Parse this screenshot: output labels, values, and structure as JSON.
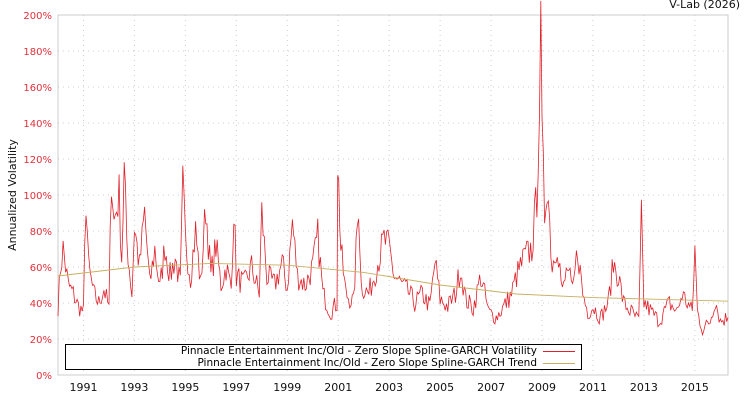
{
  "credit": "V-Lab (2026)",
  "chart_data": {
    "type": "line",
    "title": "",
    "xlabel": "",
    "ylabel": "Annualized Volatility",
    "ylim": [
      0,
      200
    ],
    "xlim": [
      1990.0,
      2016.3
    ],
    "y_ticks": [
      "0%",
      "20%",
      "40%",
      "60%",
      "80%",
      "100%",
      "120%",
      "140%",
      "160%",
      "180%",
      "200%"
    ],
    "x_ticks": [
      "1991",
      "1993",
      "1995",
      "1997",
      "1999",
      "2001",
      "2003",
      "2005",
      "2007",
      "2009",
      "2011",
      "2013",
      "2015"
    ],
    "grid": true,
    "legend_position": "bottom-left",
    "series": [
      {
        "name": "Pinnacle Entertainment Inc/Old - Zero Slope Spline-GARCH Volatility",
        "color": "#e0202a",
        "points": [
          [
            1990.0,
            38
          ],
          [
            1990.1,
            60
          ],
          [
            1990.2,
            70
          ],
          [
            1990.4,
            50
          ],
          [
            1990.6,
            45
          ],
          [
            1990.8,
            38
          ],
          [
            1991.0,
            35
          ],
          [
            1991.1,
            99
          ],
          [
            1991.2,
            60
          ],
          [
            1991.4,
            45
          ],
          [
            1991.6,
            40
          ],
          [
            1991.8,
            48
          ],
          [
            1992.0,
            37
          ],
          [
            1992.1,
            113
          ],
          [
            1992.2,
            85
          ],
          [
            1992.4,
            100
          ],
          [
            1992.5,
            65
          ],
          [
            1992.6,
            113
          ],
          [
            1992.7,
            75
          ],
          [
            1992.9,
            45
          ],
          [
            1993.0,
            83
          ],
          [
            1993.2,
            60
          ],
          [
            1993.4,
            90
          ],
          [
            1993.6,
            50
          ],
          [
            1993.8,
            70
          ],
          [
            1994.0,
            48
          ],
          [
            1994.2,
            72
          ],
          [
            1994.4,
            55
          ],
          [
            1994.6,
            65
          ],
          [
            1994.8,
            50
          ],
          [
            1994.9,
            105
          ],
          [
            1995.0,
            75
          ],
          [
            1995.2,
            55
          ],
          [
            1995.4,
            80
          ],
          [
            1995.6,
            50
          ],
          [
            1995.8,
            94
          ],
          [
            1996.0,
            55
          ],
          [
            1996.2,
            72
          ],
          [
            1996.4,
            50
          ],
          [
            1996.6,
            60
          ],
          [
            1996.8,
            48
          ],
          [
            1996.9,
            94
          ],
          [
            1997.0,
            55
          ],
          [
            1997.3,
            50
          ],
          [
            1997.6,
            60
          ],
          [
            1997.9,
            45
          ],
          [
            1998.0,
            90
          ],
          [
            1998.2,
            55
          ],
          [
            1998.5,
            50
          ],
          [
            1998.8,
            62
          ],
          [
            1999.0,
            48
          ],
          [
            1999.2,
            85
          ],
          [
            1999.4,
            55
          ],
          [
            1999.7,
            50
          ],
          [
            2000.0,
            60
          ],
          [
            2000.2,
            77
          ],
          [
            2000.4,
            45
          ],
          [
            2000.7,
            35
          ],
          [
            2000.95,
            40
          ],
          [
            2000.98,
            121
          ],
          [
            2001.1,
            70
          ],
          [
            2001.3,
            45
          ],
          [
            2001.6,
            40
          ],
          [
            2001.8,
            97
          ],
          [
            2001.9,
            50
          ],
          [
            2002.2,
            45
          ],
          [
            2002.5,
            60
          ],
          [
            2002.8,
            75
          ],
          [
            2003.0,
            70
          ],
          [
            2003.2,
            55
          ],
          [
            2003.5,
            50
          ],
          [
            2003.8,
            45
          ],
          [
            2004.0,
            40
          ],
          [
            2004.3,
            45
          ],
          [
            2004.6,
            38
          ],
          [
            2004.8,
            63
          ],
          [
            2005.0,
            42
          ],
          [
            2005.3,
            38
          ],
          [
            2005.6,
            45
          ],
          [
            2005.8,
            60
          ],
          [
            2006.0,
            42
          ],
          [
            2006.3,
            37
          ],
          [
            2006.6,
            55
          ],
          [
            2006.9,
            35
          ],
          [
            2007.2,
            32
          ],
          [
            2007.5,
            38
          ],
          [
            2007.8,
            45
          ],
          [
            2008.0,
            55
          ],
          [
            2008.3,
            65
          ],
          [
            2008.6,
            70
          ],
          [
            2008.8,
            100
          ],
          [
            2008.9,
            155
          ],
          [
            2008.95,
            185
          ],
          [
            2009.0,
            130
          ],
          [
            2009.1,
            90
          ],
          [
            2009.2,
            110
          ],
          [
            2009.4,
            60
          ],
          [
            2009.6,
            75
          ],
          [
            2009.8,
            45
          ],
          [
            2010.0,
            60
          ],
          [
            2010.2,
            45
          ],
          [
            2010.4,
            70
          ],
          [
            2010.6,
            45
          ],
          [
            2010.8,
            35
          ],
          [
            2011.0,
            38
          ],
          [
            2011.3,
            32
          ],
          [
            2011.6,
            40
          ],
          [
            2011.8,
            62
          ],
          [
            2012.0,
            55
          ],
          [
            2012.2,
            40
          ],
          [
            2012.5,
            35
          ],
          [
            2012.8,
            30
          ],
          [
            2012.9,
            86
          ],
          [
            2013.0,
            40
          ],
          [
            2013.3,
            35
          ],
          [
            2013.6,
            30
          ],
          [
            2014.0,
            40
          ],
          [
            2014.3,
            35
          ],
          [
            2014.5,
            45
          ],
          [
            2014.9,
            35
          ],
          [
            2015.0,
            70
          ],
          [
            2015.1,
            35
          ],
          [
            2015.3,
            25
          ],
          [
            2015.6,
            30
          ],
          [
            2015.8,
            42
          ],
          [
            2016.0,
            30
          ],
          [
            2016.3,
            32
          ]
        ]
      },
      {
        "name": "Pinnacle Entertainment Inc/Old - Zero Slope Spline-GARCH Trend",
        "color": "#c8b060",
        "points": [
          [
            1990.0,
            55
          ],
          [
            1993.0,
            60
          ],
          [
            1996.0,
            62
          ],
          [
            1999.0,
            61
          ],
          [
            2002.0,
            57
          ],
          [
            2005.0,
            50
          ],
          [
            2008.0,
            45
          ],
          [
            2011.0,
            43
          ],
          [
            2016.3,
            41
          ]
        ]
      }
    ]
  }
}
